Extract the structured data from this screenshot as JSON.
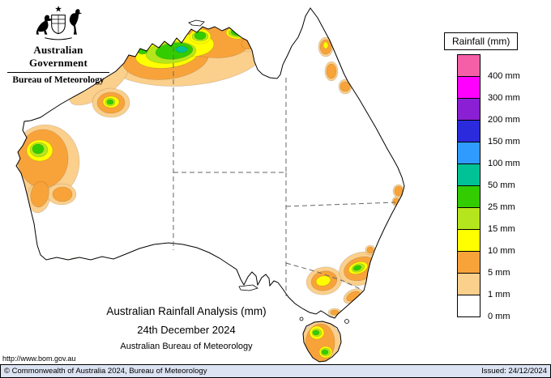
{
  "header": {
    "gov_title": "Australian Government",
    "bureau_title": "Bureau of Meteorology"
  },
  "legend": {
    "title": "Rainfall (mm)",
    "entries": [
      {
        "label": "400 mm",
        "color": "#f45fa8"
      },
      {
        "label": "300 mm",
        "color": "#ff00ff"
      },
      {
        "label": "200 mm",
        "color": "#8a1fd4"
      },
      {
        "label": "150 mm",
        "color": "#2b2bdd"
      },
      {
        "label": "100 mm",
        "color": "#2f9bff"
      },
      {
        "label": "50 mm",
        "color": "#00c295"
      },
      {
        "label": "25 mm",
        "color": "#33cc00"
      },
      {
        "label": "15 mm",
        "color": "#b5e61d"
      },
      {
        "label": "10 mm",
        "color": "#ffff00"
      },
      {
        "label": "5 mm",
        "color": "#f8a33a"
      },
      {
        "label": "1 mm",
        "color": "#fbcf8c"
      },
      {
        "label": "0 mm",
        "color": "#ffffff"
      }
    ]
  },
  "titles": {
    "line1": "Australian Rainfall Analysis (mm)",
    "line2": "24th December 2024",
    "line3": "Australian Bureau of Meteorology"
  },
  "url": "http://www.bom.gov.au",
  "footer": {
    "left": "© Commonwealth of Australia 2024, Bureau of Meteorology",
    "right": "Issued: 24/12/2024"
  }
}
